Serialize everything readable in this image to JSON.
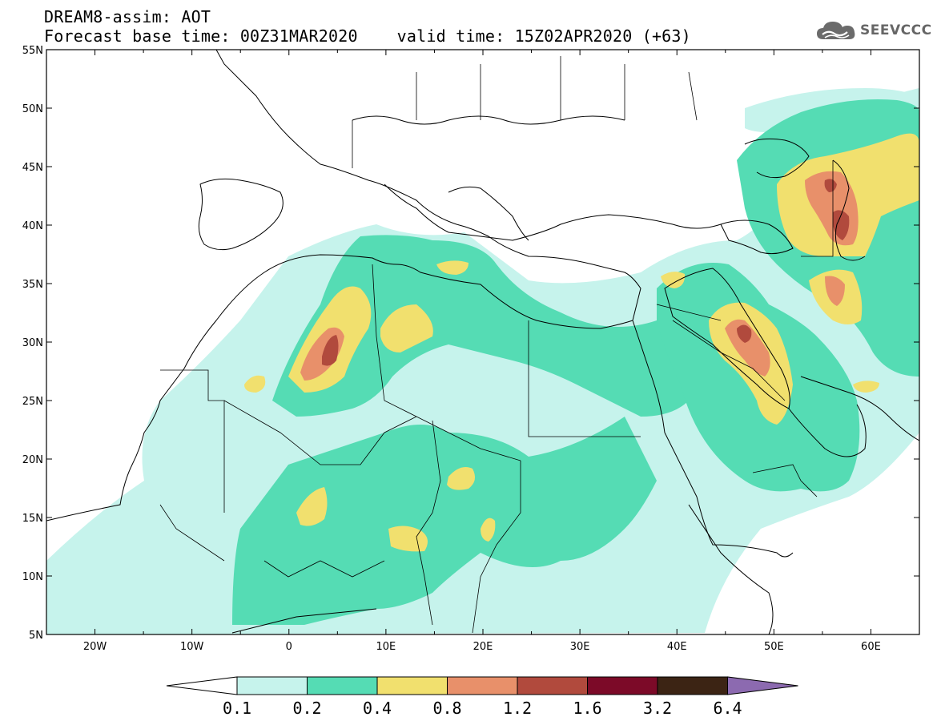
{
  "header": {
    "line1": "DREAM8-assim: AOT",
    "line2": "Forecast base time: 00Z31MAR2020    valid time: 15Z02APR2020 (+63)"
  },
  "logo": {
    "text": "SEEVCCC",
    "icon": "cloud-icon"
  },
  "map": {
    "lon_range": [
      -25,
      65
    ],
    "lat_range": [
      5,
      55
    ],
    "lat_ticks": [
      {
        "v": 55,
        "label": "55N"
      },
      {
        "v": 50,
        "label": "50N"
      },
      {
        "v": 45,
        "label": "45N"
      },
      {
        "v": 40,
        "label": "40N"
      },
      {
        "v": 35,
        "label": "35N"
      },
      {
        "v": 30,
        "label": "30N"
      },
      {
        "v": 25,
        "label": "25N"
      },
      {
        "v": 20,
        "label": "20N"
      },
      {
        "v": 15,
        "label": "15N"
      },
      {
        "v": 10,
        "label": "10N"
      },
      {
        "v": 5,
        "label": "5N"
      }
    ],
    "lon_ticks": [
      {
        "v": -20,
        "label": "20W"
      },
      {
        "v": -10,
        "label": "10W"
      },
      {
        "v": 0,
        "label": "0"
      },
      {
        "v": 10,
        "label": "10E"
      },
      {
        "v": 20,
        "label": "20E"
      },
      {
        "v": 30,
        "label": "30E"
      },
      {
        "v": 40,
        "label": "40E"
      },
      {
        "v": 50,
        "label": "50E"
      },
      {
        "v": 60,
        "label": "60E"
      }
    ]
  },
  "colorbar": {
    "labels": [
      "0.1",
      "0.2",
      "0.4",
      "0.8",
      "1.2",
      "1.6",
      "3.2",
      "6.4"
    ],
    "colors": [
      "#c6f3ec",
      "#55dcb4",
      "#f1e06e",
      "#e8906a",
      "#b14a3d",
      "#7c0a28",
      "#3c2414",
      "#8c6ab0"
    ]
  }
}
